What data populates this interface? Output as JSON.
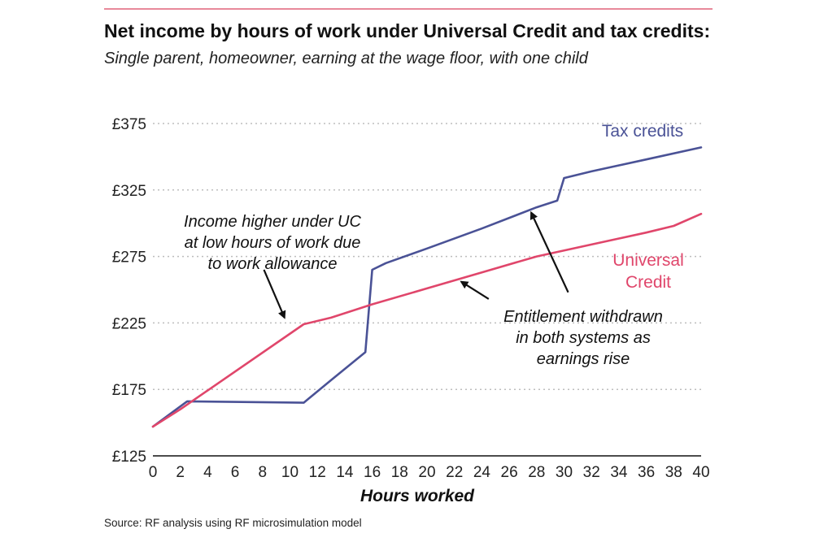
{
  "title": {
    "main": "Net income by hours of work under Universal Credit and tax credits:",
    "subtitle": "Single parent, homeowner, earning at the wage floor, with one child"
  },
  "source": "Source: RF analysis using RF microsimulation model",
  "chart_data": {
    "type": "line",
    "xlabel": "Hours worked",
    "ylabel": "",
    "xlim": [
      0,
      40
    ],
    "ylim": [
      125,
      375
    ],
    "x_ticks": [
      0,
      2,
      4,
      6,
      8,
      10,
      12,
      14,
      16,
      18,
      20,
      22,
      24,
      26,
      28,
      30,
      32,
      34,
      36,
      38,
      40
    ],
    "y_ticks": [
      125,
      175,
      225,
      275,
      325,
      375
    ],
    "y_tick_labels": [
      "£125",
      "£175",
      "£225",
      "£275",
      "£325",
      "£375"
    ],
    "grid": "horizontal dotted",
    "series": [
      {
        "name": "Tax credits",
        "color": "#4a5296",
        "points": [
          [
            0,
            147
          ],
          [
            2.5,
            166
          ],
          [
            11,
            165
          ],
          [
            13,
            182
          ],
          [
            15.5,
            203
          ],
          [
            16,
            265
          ],
          [
            17,
            270
          ],
          [
            20,
            281
          ],
          [
            24,
            296
          ],
          [
            28,
            312
          ],
          [
            29.5,
            317
          ],
          [
            30,
            334
          ],
          [
            32,
            339
          ],
          [
            36,
            348
          ],
          [
            40,
            357
          ]
        ]
      },
      {
        "name": "Universal\nCredit",
        "color": "#e0466b",
        "points": [
          [
            0,
            147
          ],
          [
            2,
            160
          ],
          [
            11,
            224
          ],
          [
            13,
            229
          ],
          [
            16,
            239
          ],
          [
            20,
            251
          ],
          [
            24,
            263
          ],
          [
            28,
            275
          ],
          [
            32,
            284
          ],
          [
            36,
            293
          ],
          [
            38,
            298
          ],
          [
            40,
            307
          ]
        ]
      }
    ],
    "annotations": [
      {
        "text": "Income higher under UC\nat low hours of work due\nto work allowance",
        "arrow_from": [
          8.1,
          265
        ],
        "arrow_to": [
          9.6,
          229
        ]
      },
      {
        "text": "Entitlement withdrawn\nin both systems as\nearnings rise",
        "arrow_from": [
          24.5,
          243
        ],
        "arrow_to": [
          22.5,
          256
        ]
      },
      {
        "arrow_from": [
          30.3,
          248
        ],
        "arrow_to": [
          27.6,
          308
        ]
      }
    ]
  }
}
